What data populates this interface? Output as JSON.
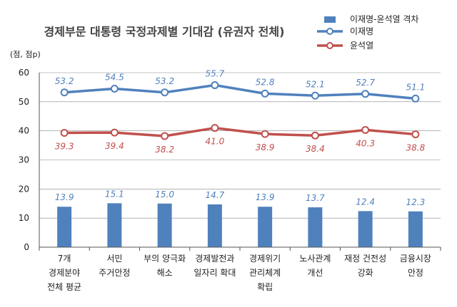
{
  "chart_data": {
    "type": "bar+line",
    "title": "경제부문 대통령 국정과제별 기대감 (유권자 전체)",
    "unit_label": "(점, 점p)",
    "ylim": [
      0,
      60
    ],
    "yticks": [
      "0",
      "10",
      "20",
      "30",
      "40",
      "50",
      "60"
    ],
    "grid": true,
    "legend_position": "top-right",
    "categories": [
      [
        "7개",
        "경제분야",
        "전체 평균"
      ],
      [
        "서민",
        "주거안정"
      ],
      [
        "부의 양극화",
        "해소"
      ],
      [
        "경제발전과",
        "일자리 확대"
      ],
      [
        "경제위기",
        "관리체계",
        "확립"
      ],
      [
        "노사관계",
        "개선"
      ],
      [
        "재정 건전성",
        "강화"
      ],
      [
        "금융시장",
        "안정"
      ]
    ],
    "series": [
      {
        "name": "이재명-윤석열 격차",
        "kind": "bar",
        "color": "#4f81bd",
        "values": [
          13.9,
          15.1,
          15.0,
          14.7,
          13.9,
          13.7,
          12.4,
          12.3
        ],
        "labels": [
          "13.9",
          "15.1",
          "15.0",
          "14.7",
          "13.9",
          "13.7",
          "12.4",
          "12.3"
        ]
      },
      {
        "name": "이재명",
        "kind": "line",
        "color": "#4f81bd",
        "values": [
          53.2,
          54.5,
          53.2,
          55.7,
          52.8,
          52.1,
          52.7,
          51.1
        ],
        "labels": [
          "53.2",
          "54.5",
          "53.2",
          "55.7",
          "52.8",
          "52.1",
          "52.7",
          "51.1"
        ]
      },
      {
        "name": "윤석열",
        "kind": "line",
        "color": "#c0504d",
        "values": [
          39.3,
          39.4,
          38.2,
          41.0,
          38.9,
          38.4,
          40.3,
          38.8
        ],
        "labels": [
          "39.3",
          "39.4",
          "38.2",
          "41.0",
          "38.9",
          "38.4",
          "40.3",
          "38.8"
        ]
      }
    ]
  }
}
